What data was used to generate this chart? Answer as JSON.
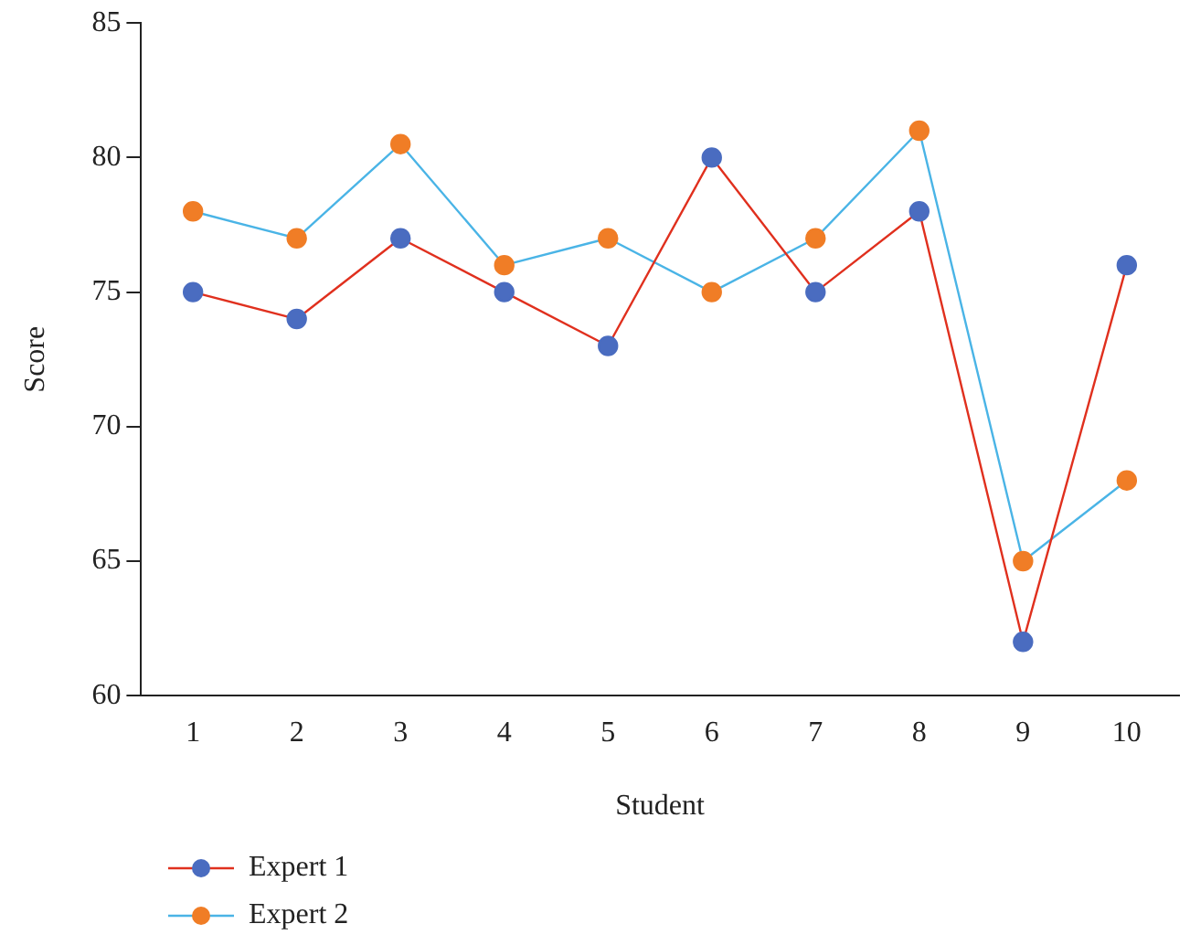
{
  "chart_data": {
    "type": "line",
    "xlabel": "Student",
    "ylabel": "Score",
    "categories": [
      "1",
      "2",
      "3",
      "4",
      "5",
      "6",
      "7",
      "8",
      "9",
      "10"
    ],
    "series": [
      {
        "name": "Expert 1",
        "color": "#e0301e",
        "colors": [
          "#4a6cc0",
          "#4a6cc0",
          "#4a6cc0",
          "#4a6cc0",
          "#4a6cc0",
          "#4a6cc0",
          "#4a6cc0",
          "#4a6cc0",
          "#4a6cc0",
          "#4a6cc0"
        ],
        "values": [
          75,
          74,
          77,
          75,
          73,
          80,
          75,
          78,
          62,
          76
        ]
      },
      {
        "name": "Expert 2",
        "color": "#4ab4e6",
        "colors": [
          "#f07d26",
          "#f07d26",
          "#f07d26",
          "#f07d26",
          "#f07d26",
          "#f07d26",
          "#f07d26",
          "#f07d26",
          "#f07d26",
          "#f07d26"
        ],
        "values": [
          78,
          77,
          80.5,
          76,
          77,
          75,
          77,
          81,
          65,
          68
        ]
      }
    ],
    "ylim": [
      60,
      85
    ],
    "yticks": [
      60,
      65,
      70,
      75,
      80,
      85
    ],
    "grid": false,
    "legend": "bottom left",
    "marker": "circle",
    "line_style": "solid"
  }
}
